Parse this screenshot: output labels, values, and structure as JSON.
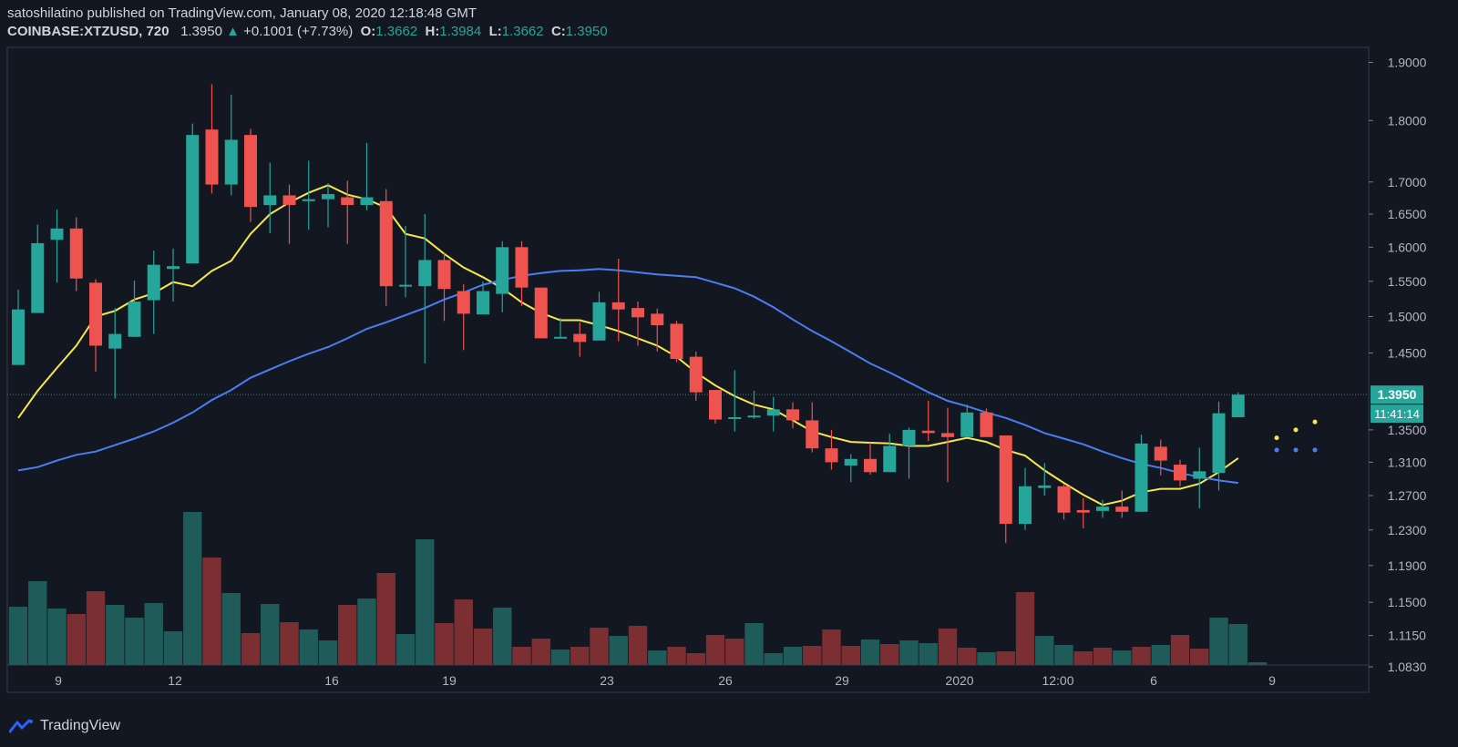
{
  "header": {
    "publisher": "satoshilatino published on TradingView.com, January 08, 2020 12:18:48 GMT",
    "symbol": "COINBASE:XTZUSD, 720",
    "last": "1.3950",
    "change_arrow": "▲",
    "change": "+0.1001 (+7.73%)",
    "open_label": "O:",
    "open": "1.3662",
    "high_label": "H:",
    "high": "1.3984",
    "low_label": "L:",
    "low": "1.3662",
    "close_label": "C:",
    "close": "1.3950"
  },
  "footer": {
    "brand": "TradingView",
    "logo_icon": "tradingview-logo-icon"
  },
  "colors": {
    "background": "#131722",
    "up": "#26a69a",
    "down": "#ef5350",
    "vol_up": "#1f5b58",
    "vol_down": "#7b2f33",
    "ma_fast": "#f5e84c",
    "ma_slow": "#4a7ef0",
    "text": "#d1d4dc"
  },
  "chart_data": {
    "type": "candlestick",
    "title": "COINBASE:XTZUSD, 720",
    "y_scale": "log",
    "ylim": [
      1.083,
      1.93
    ],
    "y_ticks": [
      "1.9000",
      "1.8000",
      "1.7000",
      "1.6500",
      "1.6000",
      "1.5500",
      "1.5000",
      "1.4500",
      "1.3950",
      "1.3500",
      "1.3100",
      "1.2700",
      "1.2300",
      "1.1900",
      "1.1500",
      "1.1150",
      "1.0830"
    ],
    "x_ticks": [
      "9",
      "12",
      "16",
      "19",
      "23",
      "26",
      "29",
      "2020",
      "12:00",
      "6",
      "9"
    ],
    "last_price_label": "1.3950",
    "countdown_label": "11:41:14",
    "candles": [
      {
        "o": 1.434,
        "h": 1.538,
        "l": 1.434,
        "c": 1.51
      },
      {
        "o": 1.505,
        "h": 1.634,
        "l": 1.505,
        "c": 1.606
      },
      {
        "o": 1.611,
        "h": 1.657,
        "l": 1.548,
        "c": 1.628
      },
      {
        "o": 1.628,
        "h": 1.645,
        "l": 1.536,
        "c": 1.554
      },
      {
        "o": 1.548,
        "h": 1.553,
        "l": 1.425,
        "c": 1.46
      },
      {
        "o": 1.456,
        "h": 1.512,
        "l": 1.39,
        "c": 1.476
      },
      {
        "o": 1.472,
        "h": 1.551,
        "l": 1.472,
        "c": 1.521
      },
      {
        "o": 1.523,
        "h": 1.595,
        "l": 1.476,
        "c": 1.574
      },
      {
        "o": 1.568,
        "h": 1.598,
        "l": 1.521,
        "c": 1.572
      },
      {
        "o": 1.576,
        "h": 1.795,
        "l": 1.576,
        "c": 1.776
      },
      {
        "o": 1.785,
        "h": 1.862,
        "l": 1.682,
        "c": 1.696
      },
      {
        "o": 1.696,
        "h": 1.844,
        "l": 1.679,
        "c": 1.768
      },
      {
        "o": 1.776,
        "h": 1.786,
        "l": 1.638,
        "c": 1.661
      },
      {
        "o": 1.664,
        "h": 1.731,
        "l": 1.621,
        "c": 1.679
      },
      {
        "o": 1.679,
        "h": 1.696,
        "l": 1.605,
        "c": 1.664
      },
      {
        "o": 1.67,
        "h": 1.734,
        "l": 1.626,
        "c": 1.673
      },
      {
        "o": 1.673,
        "h": 1.698,
        "l": 1.63,
        "c": 1.681
      },
      {
        "o": 1.676,
        "h": 1.702,
        "l": 1.605,
        "c": 1.664
      },
      {
        "o": 1.664,
        "h": 1.763,
        "l": 1.656,
        "c": 1.676
      },
      {
        "o": 1.67,
        "h": 1.689,
        "l": 1.515,
        "c": 1.543
      },
      {
        "o": 1.543,
        "h": 1.632,
        "l": 1.527,
        "c": 1.545
      },
      {
        "o": 1.543,
        "h": 1.65,
        "l": 1.436,
        "c": 1.581
      },
      {
        "o": 1.581,
        "h": 1.591,
        "l": 1.494,
        "c": 1.539
      },
      {
        "o": 1.536,
        "h": 1.546,
        "l": 1.454,
        "c": 1.504
      },
      {
        "o": 1.503,
        "h": 1.55,
        "l": 1.503,
        "c": 1.536
      },
      {
        "o": 1.532,
        "h": 1.609,
        "l": 1.506,
        "c": 1.6
      },
      {
        "o": 1.6,
        "h": 1.609,
        "l": 1.515,
        "c": 1.541
      },
      {
        "o": 1.541,
        "h": 1.541,
        "l": 1.47,
        "c": 1.47
      },
      {
        "o": 1.472,
        "h": 1.498,
        "l": 1.472,
        "c": 1.472
      },
      {
        "o": 1.476,
        "h": 1.492,
        "l": 1.445,
        "c": 1.465
      },
      {
        "o": 1.467,
        "h": 1.535,
        "l": 1.467,
        "c": 1.52
      },
      {
        "o": 1.52,
        "h": 1.583,
        "l": 1.466,
        "c": 1.51
      },
      {
        "o": 1.512,
        "h": 1.521,
        "l": 1.46,
        "c": 1.499
      },
      {
        "o": 1.504,
        "h": 1.511,
        "l": 1.452,
        "c": 1.488
      },
      {
        "o": 1.49,
        "h": 1.494,
        "l": 1.438,
        "c": 1.442
      },
      {
        "o": 1.445,
        "h": 1.452,
        "l": 1.387,
        "c": 1.398
      },
      {
        "o": 1.401,
        "h": 1.401,
        "l": 1.358,
        "c": 1.363
      },
      {
        "o": 1.364,
        "h": 1.427,
        "l": 1.348,
        "c": 1.366
      },
      {
        "o": 1.366,
        "h": 1.4,
        "l": 1.364,
        "c": 1.368
      },
      {
        "o": 1.368,
        "h": 1.392,
        "l": 1.348,
        "c": 1.376
      },
      {
        "o": 1.376,
        "h": 1.385,
        "l": 1.352,
        "c": 1.362
      },
      {
        "o": 1.362,
        "h": 1.385,
        "l": 1.322,
        "c": 1.327
      },
      {
        "o": 1.327,
        "h": 1.35,
        "l": 1.301,
        "c": 1.31
      },
      {
        "o": 1.306,
        "h": 1.32,
        "l": 1.286,
        "c": 1.314
      },
      {
        "o": 1.314,
        "h": 1.334,
        "l": 1.295,
        "c": 1.298
      },
      {
        "o": 1.298,
        "h": 1.345,
        "l": 1.298,
        "c": 1.33
      },
      {
        "o": 1.33,
        "h": 1.353,
        "l": 1.29,
        "c": 1.35
      },
      {
        "o": 1.349,
        "h": 1.387,
        "l": 1.336,
        "c": 1.346
      },
      {
        "o": 1.346,
        "h": 1.378,
        "l": 1.286,
        "c": 1.341
      },
      {
        "o": 1.341,
        "h": 1.382,
        "l": 1.341,
        "c": 1.372
      },
      {
        "o": 1.372,
        "h": 1.377,
        "l": 1.341,
        "c": 1.341
      },
      {
        "o": 1.343,
        "h": 1.343,
        "l": 1.215,
        "c": 1.237
      },
      {
        "o": 1.237,
        "h": 1.303,
        "l": 1.23,
        "c": 1.281
      },
      {
        "o": 1.279,
        "h": 1.309,
        "l": 1.27,
        "c": 1.282
      },
      {
        "o": 1.281,
        "h": 1.283,
        "l": 1.242,
        "c": 1.25
      },
      {
        "o": 1.253,
        "h": 1.267,
        "l": 1.232,
        "c": 1.25
      },
      {
        "o": 1.252,
        "h": 1.265,
        "l": 1.244,
        "c": 1.257
      },
      {
        "o": 1.257,
        "h": 1.276,
        "l": 1.244,
        "c": 1.251
      },
      {
        "o": 1.251,
        "h": 1.344,
        "l": 1.251,
        "c": 1.333
      },
      {
        "o": 1.329,
        "h": 1.338,
        "l": 1.294,
        "c": 1.312
      },
      {
        "o": 1.307,
        "h": 1.313,
        "l": 1.281,
        "c": 1.288
      },
      {
        "o": 1.29,
        "h": 1.328,
        "l": 1.255,
        "c": 1.299
      },
      {
        "o": 1.297,
        "h": 1.386,
        "l": 1.276,
        "c": 1.371
      },
      {
        "o": 1.366,
        "h": 1.398,
        "l": 1.366,
        "c": 1.395
      }
    ],
    "volume": [
      {
        "v": 64,
        "up": true
      },
      {
        "v": 92,
        "up": true
      },
      {
        "v": 62,
        "up": true
      },
      {
        "v": 56,
        "up": false
      },
      {
        "v": 81,
        "up": false
      },
      {
        "v": 66,
        "up": true
      },
      {
        "v": 52,
        "up": true
      },
      {
        "v": 68,
        "up": true
      },
      {
        "v": 37,
        "up": true
      },
      {
        "v": 168,
        "up": true
      },
      {
        "v": 118,
        "up": false
      },
      {
        "v": 79,
        "up": true
      },
      {
        "v": 35,
        "up": false
      },
      {
        "v": 67,
        "up": true
      },
      {
        "v": 47,
        "up": false
      },
      {
        "v": 39,
        "up": true
      },
      {
        "v": 27,
        "up": true
      },
      {
        "v": 66,
        "up": false
      },
      {
        "v": 73,
        "up": true
      },
      {
        "v": 101,
        "up": false
      },
      {
        "v": 34,
        "up": true
      },
      {
        "v": 138,
        "up": true
      },
      {
        "v": 46,
        "up": false
      },
      {
        "v": 72,
        "up": false
      },
      {
        "v": 40,
        "up": false
      },
      {
        "v": 63,
        "up": true
      },
      {
        "v": 20,
        "up": false
      },
      {
        "v": 29,
        "up": false
      },
      {
        "v": 17,
        "up": true
      },
      {
        "v": 20,
        "up": false
      },
      {
        "v": 41,
        "up": false
      },
      {
        "v": 32,
        "up": true
      },
      {
        "v": 43,
        "up": false
      },
      {
        "v": 16,
        "up": true
      },
      {
        "v": 20,
        "up": false
      },
      {
        "v": 13,
        "up": false
      },
      {
        "v": 33,
        "up": false
      },
      {
        "v": 29,
        "up": false
      },
      {
        "v": 46,
        "up": true
      },
      {
        "v": 13,
        "up": true
      },
      {
        "v": 20,
        "up": true
      },
      {
        "v": 21,
        "up": false
      },
      {
        "v": 39,
        "up": false
      },
      {
        "v": 21,
        "up": false
      },
      {
        "v": 28,
        "up": true
      },
      {
        "v": 23,
        "up": false
      },
      {
        "v": 27,
        "up": true
      },
      {
        "v": 24,
        "up": true
      },
      {
        "v": 40,
        "up": false
      },
      {
        "v": 19,
        "up": false
      },
      {
        "v": 14,
        "up": true
      },
      {
        "v": 15,
        "up": false
      },
      {
        "v": 80,
        "up": false
      },
      {
        "v": 32,
        "up": true
      },
      {
        "v": 22,
        "up": true
      },
      {
        "v": 15,
        "up": false
      },
      {
        "v": 19,
        "up": false
      },
      {
        "v": 16,
        "up": true
      },
      {
        "v": 20,
        "up": false
      },
      {
        "v": 22,
        "up": true
      },
      {
        "v": 33,
        "up": false
      },
      {
        "v": 18,
        "up": false
      },
      {
        "v": 52,
        "up": true
      },
      {
        "v": 45,
        "up": true
      },
      {
        "v": 3,
        "up": true
      }
    ],
    "series": [
      {
        "name": "",
        "color": "#f5e84c",
        "values": [
          1.365,
          1.4,
          1.43,
          1.46,
          1.5,
          1.508,
          1.524,
          1.533,
          1.549,
          1.543,
          1.565,
          1.58,
          1.62,
          1.65,
          1.668,
          1.683,
          1.695,
          1.68,
          1.673,
          1.66,
          1.62,
          1.613,
          1.59,
          1.57,
          1.556,
          1.54,
          1.52,
          1.505,
          1.495,
          1.495,
          1.488,
          1.48,
          1.47,
          1.46,
          1.445,
          1.424,
          1.407,
          1.393,
          1.382,
          1.376,
          1.362,
          1.348,
          1.341,
          1.335,
          1.334,
          1.333,
          1.33,
          1.33,
          1.335,
          1.34,
          1.335,
          1.325,
          1.318,
          1.3,
          1.285,
          1.271,
          1.259,
          1.264,
          1.274,
          1.278,
          1.278,
          1.284,
          1.298,
          1.315
        ]
      },
      {
        "name": "",
        "color": "#4a7ef0",
        "values": [
          1.3,
          1.304,
          1.312,
          1.319,
          1.323,
          1.331,
          1.339,
          1.348,
          1.359,
          1.372,
          1.388,
          1.401,
          1.417,
          1.428,
          1.439,
          1.449,
          1.458,
          1.47,
          1.483,
          1.492,
          1.502,
          1.512,
          1.524,
          1.534,
          1.545,
          1.552,
          1.558,
          1.562,
          1.565,
          1.566,
          1.568,
          1.566,
          1.563,
          1.56,
          1.558,
          1.556,
          1.548,
          1.54,
          1.528,
          1.513,
          1.496,
          1.48,
          1.466,
          1.451,
          1.436,
          1.424,
          1.411,
          1.398,
          1.387,
          1.38,
          1.372,
          1.365,
          1.356,
          1.346,
          1.339,
          1.332,
          1.323,
          1.315,
          1.308,
          1.303,
          1.297,
          1.292,
          1.288,
          1.285
        ]
      }
    ],
    "projection_points": {
      "ma_fast": [
        1.34,
        1.35,
        1.36
      ],
      "ma_slow": [
        1.325,
        1.325,
        1.325
      ]
    }
  }
}
